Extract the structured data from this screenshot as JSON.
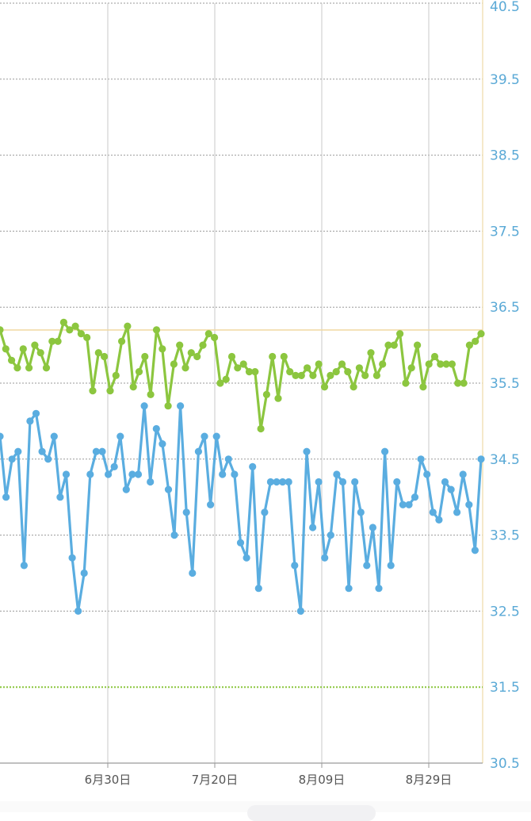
{
  "chart_data": {
    "type": "line",
    "title": "",
    "xlabel": "",
    "ylabel": "",
    "ylim": [
      30.5,
      40.5
    ],
    "y_ticks": [
      "40.5",
      "39.5",
      "38.5",
      "37.5",
      "36.5",
      "35.5",
      "34.5",
      "33.5",
      "32.5",
      "31.5",
      "30.5"
    ],
    "x_tick_labels": [
      "6月30日",
      "7月20日",
      "8月09日",
      "8月29日"
    ],
    "grid": true,
    "reference_lines": [
      {
        "value": 36.2,
        "color": "#f0d9a0",
        "style": "solid"
      },
      {
        "value": 31.5,
        "color": "#8cc63f",
        "style": "dotted"
      }
    ],
    "series": [
      {
        "color": "#8cc63f",
        "values": [
          36.2,
          35.95,
          35.8,
          35.7,
          35.95,
          35.7,
          36.0,
          35.9,
          35.7,
          36.05,
          36.05,
          36.3,
          36.2,
          36.25,
          36.15,
          36.1,
          35.4,
          35.9,
          35.85,
          35.4,
          35.6,
          36.05,
          36.25,
          35.45,
          35.65,
          35.85,
          35.35,
          36.2,
          35.95,
          35.2,
          35.75,
          36.0,
          35.7,
          35.9,
          35.85,
          36.0,
          36.15,
          36.1,
          35.5,
          35.55,
          35.85,
          35.7,
          35.75,
          35.65,
          35.65,
          34.9,
          35.35,
          35.85,
          35.3,
          35.85,
          35.65,
          35.6,
          35.6,
          35.7,
          35.6,
          35.75,
          35.45,
          35.6,
          35.65,
          35.75,
          35.65,
          35.45,
          35.7,
          35.6,
          35.9,
          35.6,
          35.75,
          36.0,
          36.0,
          36.15,
          35.5,
          35.7,
          36.0,
          35.45,
          35.75,
          35.85,
          35.75,
          35.75,
          35.75,
          35.5,
          35.5,
          36.0,
          36.05,
          36.15
        ]
      },
      {
        "color": "#5aade0",
        "values": [
          34.8,
          34.0,
          34.5,
          34.6,
          33.1,
          35.0,
          35.1,
          34.6,
          34.5,
          34.8,
          34.0,
          34.3,
          33.2,
          32.5,
          33.0,
          34.3,
          34.6,
          34.6,
          34.3,
          34.4,
          34.8,
          34.1,
          34.3,
          34.3,
          35.2,
          34.2,
          34.9,
          34.7,
          34.1,
          33.5,
          35.2,
          33.8,
          33.0,
          34.6,
          34.8,
          33.9,
          34.8,
          34.3,
          34.5,
          34.3,
          33.4,
          33.2,
          34.4,
          32.8,
          33.8,
          34.2,
          34.2,
          34.2,
          34.2,
          33.1,
          32.5,
          34.6,
          33.6,
          34.2,
          33.2,
          33.5,
          34.3,
          34.2,
          32.8,
          34.2,
          33.8,
          33.1,
          33.6,
          32.8,
          34.6,
          33.1,
          34.2,
          33.9,
          33.9,
          34.0,
          34.5,
          34.3,
          33.8,
          33.7,
          34.2,
          34.1,
          33.8,
          34.3,
          33.9,
          33.3,
          34.5
        ]
      }
    ]
  }
}
